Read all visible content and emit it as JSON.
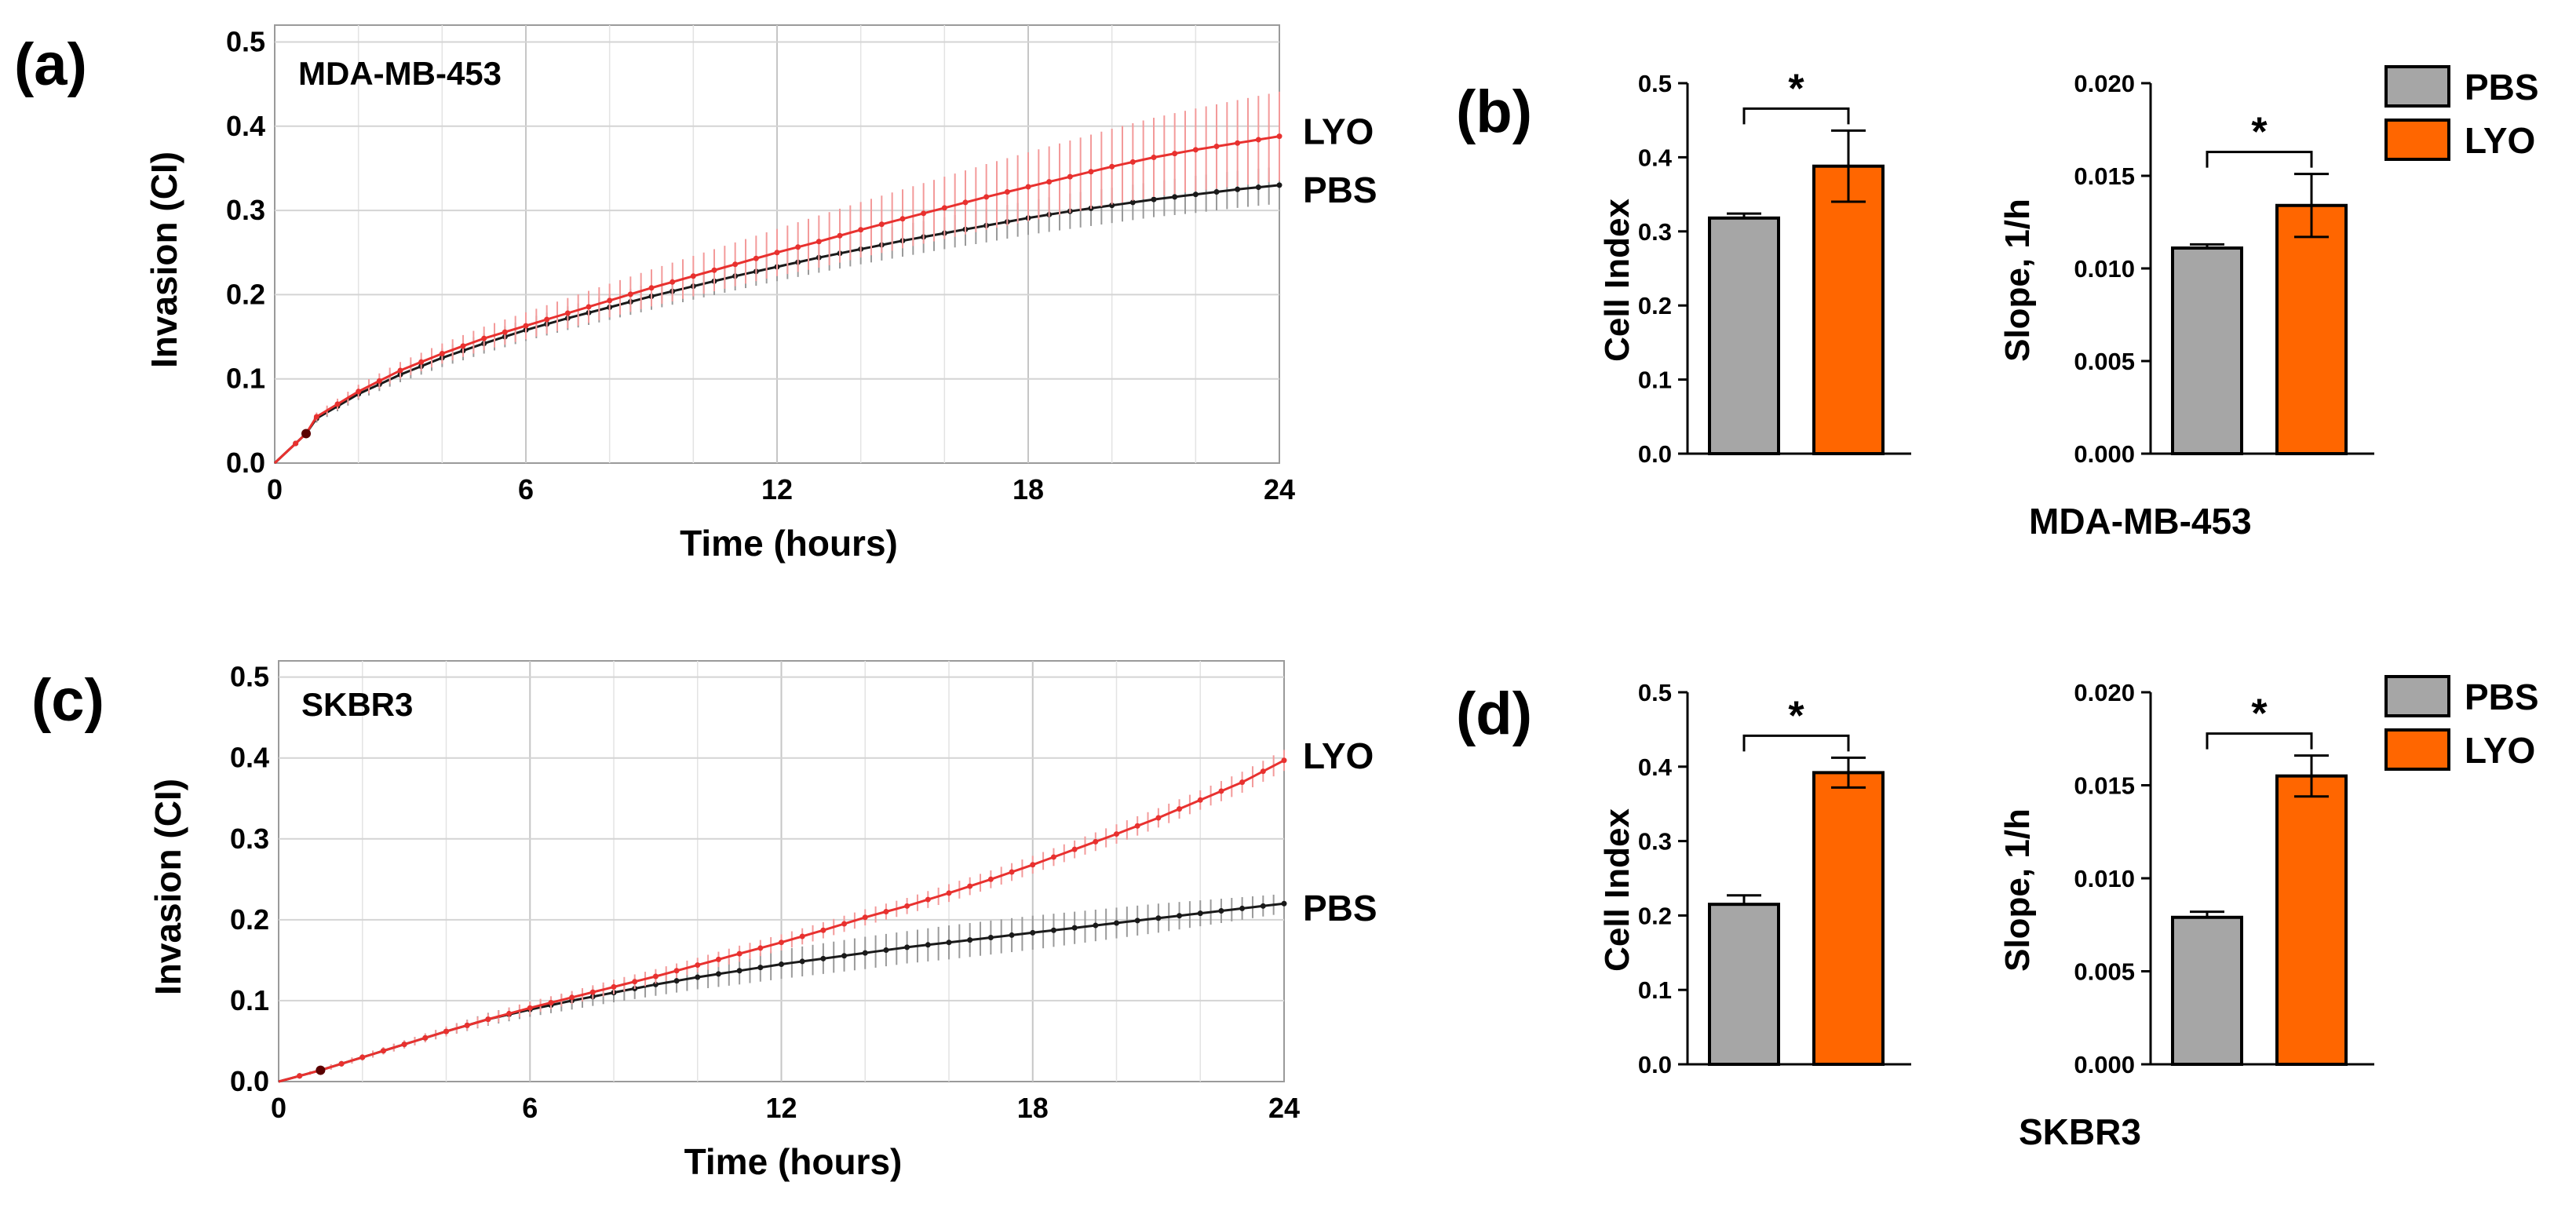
{
  "legend": {
    "items": [
      {
        "label": "PBS",
        "color": "#a6a6a6"
      },
      {
        "label": "LYO",
        "color": "#ff6600"
      }
    ]
  },
  "line_style": {
    "PBS": "#1a1a1a",
    "LYO": "#e8312f",
    "PBS_err": "#9a9a9a",
    "LYO_err": "#f39a9a"
  },
  "chart_data": [
    {
      "id": "a",
      "panel_label": "(a)",
      "type": "line",
      "cell_line": "MDA-MB-453",
      "xlabel": "Time  (hours)",
      "ylabel": "Invasion  (CI)",
      "xlim": [
        0,
        24
      ],
      "ylim": [
        0,
        0.52
      ],
      "xticks": [
        "0",
        "6",
        "12",
        "18",
        "24"
      ],
      "yticks": [
        "0.0",
        "0.1",
        "0.2",
        "0.3",
        "0.4",
        "0.5"
      ],
      "grid": true,
      "series": [
        {
          "name": "LYO",
          "end_label": "LYO",
          "x": [
            0,
            0.75,
            1,
            2,
            3,
            4,
            5,
            6,
            7,
            8,
            9,
            10,
            11,
            12,
            13,
            14,
            15,
            16,
            17,
            18,
            19,
            20,
            21,
            22,
            23,
            24
          ],
          "y": [
            0,
            0.035,
            0.055,
            0.085,
            0.11,
            0.13,
            0.148,
            0.163,
            0.178,
            0.193,
            0.208,
            0.222,
            0.236,
            0.25,
            0.263,
            0.277,
            0.29,
            0.303,
            0.316,
            0.328,
            0.34,
            0.352,
            0.363,
            0.372,
            0.38,
            0.388
          ],
          "err": [
            0,
            0.003,
            0.005,
            0.008,
            0.01,
            0.012,
            0.014,
            0.016,
            0.018,
            0.02,
            0.022,
            0.024,
            0.026,
            0.028,
            0.031,
            0.033,
            0.035,
            0.037,
            0.039,
            0.041,
            0.043,
            0.045,
            0.047,
            0.049,
            0.051,
            0.053
          ]
        },
        {
          "name": "PBS",
          "end_label": "PBS",
          "x": [
            0,
            0.75,
            1,
            2,
            3,
            4,
            5,
            6,
            7,
            8,
            9,
            10,
            11,
            12,
            13,
            14,
            15,
            16,
            17,
            18,
            19,
            20,
            21,
            22,
            23,
            24
          ],
          "y": [
            0,
            0.035,
            0.053,
            0.082,
            0.105,
            0.125,
            0.142,
            0.158,
            0.172,
            0.185,
            0.198,
            0.21,
            0.222,
            0.233,
            0.244,
            0.254,
            0.264,
            0.273,
            0.282,
            0.291,
            0.299,
            0.306,
            0.313,
            0.319,
            0.325,
            0.33
          ],
          "err": [
            0,
            0.003,
            0.005,
            0.007,
            0.009,
            0.011,
            0.012,
            0.013,
            0.014,
            0.015,
            0.016,
            0.016,
            0.017,
            0.017,
            0.018,
            0.018,
            0.019,
            0.019,
            0.02,
            0.02,
            0.021,
            0.021,
            0.021,
            0.022,
            0.022,
            0.022
          ]
        }
      ]
    },
    {
      "id": "b1",
      "panel_label": "(b)",
      "type": "bar",
      "ylabel": "Cell Index",
      "ylim": [
        0,
        0.5
      ],
      "yticks": [
        "0.0",
        "0.1",
        "0.2",
        "0.3",
        "0.4",
        "0.5"
      ],
      "categories": [
        "PBS",
        "LYO"
      ],
      "values": [
        0.318,
        0.388
      ],
      "errors": [
        0.006,
        0.048
      ],
      "significance": "*"
    },
    {
      "id": "b2",
      "type": "bar",
      "ylabel": "Slope,  1/h",
      "ylim": [
        0,
        0.02
      ],
      "yticks": [
        "0.000",
        "0.005",
        "0.010",
        "0.015",
        "0.020"
      ],
      "categories": [
        "PBS",
        "LYO"
      ],
      "values": [
        0.0111,
        0.0134
      ],
      "errors": [
        0.0002,
        0.0017
      ],
      "significance": "*",
      "caption": "MDA-MB-453"
    },
    {
      "id": "c",
      "panel_label": "(c)",
      "type": "line",
      "cell_line": "SKBR3",
      "xlabel": "Time  (hours)",
      "ylabel": "Invasion  (CI)",
      "xlim": [
        0,
        24
      ],
      "ylim": [
        0,
        0.52
      ],
      "xticks": [
        "0",
        "6",
        "12",
        "18",
        "24"
      ],
      "yticks": [
        "0.0",
        "0.1",
        "0.2",
        "0.3",
        "0.4",
        "0.5"
      ],
      "grid": true,
      "series": [
        {
          "name": "LYO",
          "end_label": "LYO",
          "x": [
            0,
            1,
            2,
            3,
            4,
            5,
            6,
            7,
            8,
            9,
            10,
            11,
            12,
            13,
            14,
            15,
            16,
            17,
            18,
            19,
            20,
            21,
            22,
            23,
            24
          ],
          "y": [
            0,
            0.014,
            0.03,
            0.046,
            0.062,
            0.077,
            0.091,
            0.104,
            0.117,
            0.13,
            0.144,
            0.158,
            0.172,
            0.187,
            0.203,
            0.217,
            0.233,
            0.25,
            0.268,
            0.287,
            0.306,
            0.326,
            0.348,
            0.37,
            0.397
          ],
          "err": [
            0,
            0.003,
            0.004,
            0.005,
            0.006,
            0.007,
            0.008,
            0.008,
            0.009,
            0.009,
            0.009,
            0.01,
            0.01,
            0.01,
            0.01,
            0.01,
            0.011,
            0.011,
            0.011,
            0.011,
            0.012,
            0.012,
            0.012,
            0.013,
            0.013
          ]
        },
        {
          "name": "PBS",
          "end_label": "PBS",
          "x": [
            0,
            1,
            2,
            3,
            4,
            5,
            6,
            7,
            8,
            9,
            10,
            11,
            12,
            13,
            14,
            15,
            16,
            17,
            18,
            19,
            20,
            21,
            22,
            23,
            24
          ],
          "y": [
            0,
            0.014,
            0.03,
            0.046,
            0.062,
            0.077,
            0.089,
            0.1,
            0.11,
            0.12,
            0.129,
            0.137,
            0.145,
            0.152,
            0.159,
            0.166,
            0.172,
            0.178,
            0.184,
            0.19,
            0.196,
            0.202,
            0.208,
            0.214,
            0.22
          ],
          "err": [
            0,
            0.003,
            0.004,
            0.005,
            0.006,
            0.008,
            0.009,
            0.011,
            0.012,
            0.014,
            0.015,
            0.017,
            0.018,
            0.019,
            0.02,
            0.02,
            0.021,
            0.021,
            0.021,
            0.02,
            0.019,
            0.018,
            0.016,
            0.014,
            0.012
          ]
        }
      ]
    },
    {
      "id": "d1",
      "panel_label": "(d)",
      "type": "bar",
      "ylabel": "Cell Index",
      "ylim": [
        0,
        0.5
      ],
      "yticks": [
        "0.0",
        "0.1",
        "0.2",
        "0.3",
        "0.4",
        "0.5"
      ],
      "categories": [
        "PBS",
        "LYO"
      ],
      "values": [
        0.215,
        0.392
      ],
      "errors": [
        0.012,
        0.02
      ],
      "significance": "*"
    },
    {
      "id": "d2",
      "type": "bar",
      "ylabel": "Slope,  1/h",
      "ylim": [
        0,
        0.02
      ],
      "yticks": [
        "0.000",
        "0.005",
        "0.010",
        "0.015",
        "0.020"
      ],
      "categories": [
        "PBS",
        "LYO"
      ],
      "values": [
        0.0079,
        0.0155
      ],
      "errors": [
        0.0003,
        0.0011
      ],
      "significance": "*",
      "caption": "SKBR3"
    }
  ]
}
